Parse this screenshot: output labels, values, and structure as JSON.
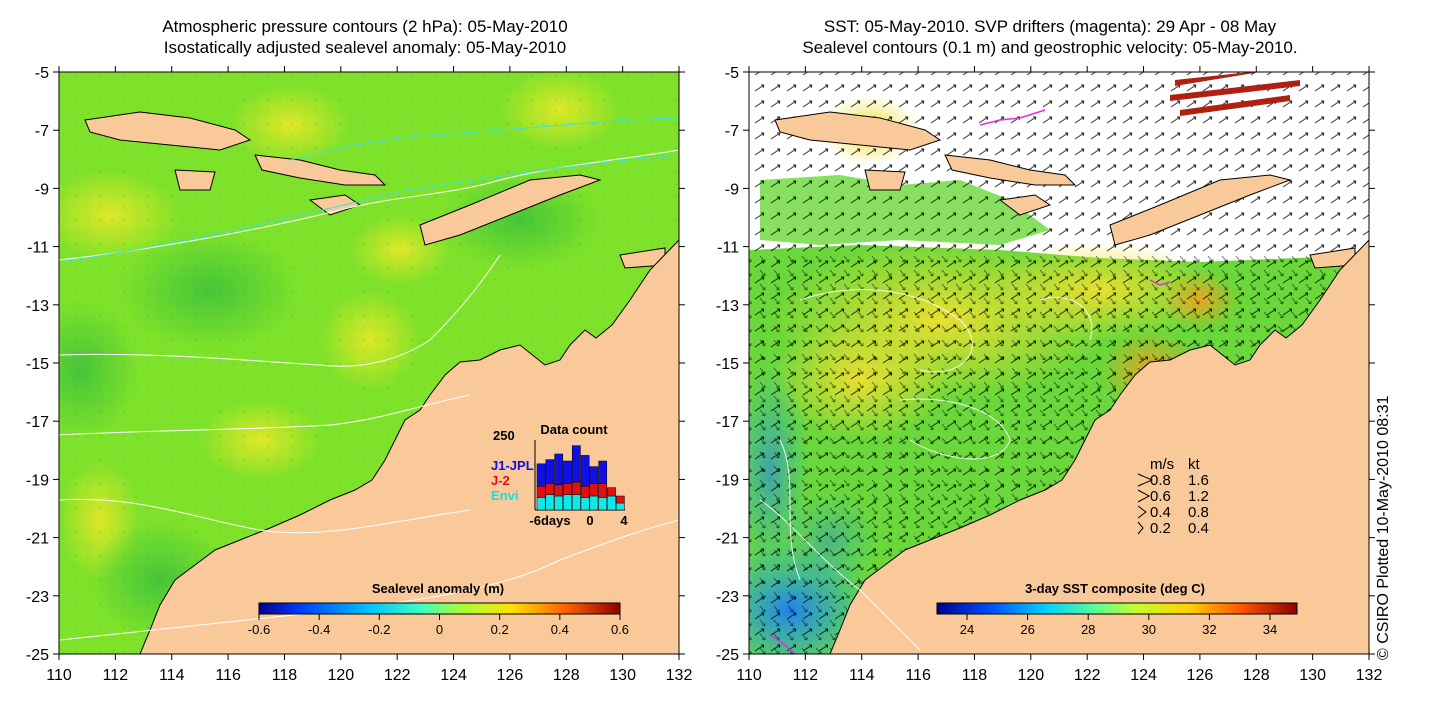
{
  "left_panel": {
    "title_line1": "Atmospheric pressure contours (2 hPa): 05-May-2010",
    "title_line2": "Isostatically adjusted sealevel anomaly: 05-May-2010",
    "x_ticks": [
      "110",
      "112",
      "114",
      "116",
      "118",
      "120",
      "122",
      "124",
      "126",
      "128",
      "130",
      "132"
    ],
    "y_ticks": [
      "-5",
      "-7",
      "-9",
      "-11",
      "-13",
      "-15",
      "-17",
      "-19",
      "-21",
      "-23",
      "-25"
    ],
    "colorbar": {
      "title": "Sealevel anomaly (m)",
      "ticks": [
        "-0.6",
        "-0.4",
        "-0.2",
        "0",
        "0.2",
        "0.4",
        "0.6"
      ]
    },
    "inset": {
      "title": "Data count",
      "y_label": "250",
      "legend": [
        {
          "label": "J1-JPL",
          "color": "#1010e0"
        },
        {
          "label": "J-2",
          "color": "#e01010"
        },
        {
          "label": "Envi",
          "color": "#10e0e0"
        }
      ],
      "x_ticks": [
        "-6days",
        "0",
        "4"
      ],
      "bars": [
        {
          "envi": 45,
          "j2": 40,
          "j1": 80
        },
        {
          "envi": 55,
          "j2": 40,
          "j1": 85
        },
        {
          "envi": 50,
          "j2": 40,
          "j1": 110
        },
        {
          "envi": 55,
          "j2": 40,
          "j1": 80
        },
        {
          "envi": 55,
          "j2": 45,
          "j1": 130
        },
        {
          "envi": 45,
          "j2": 40,
          "j1": 110
        },
        {
          "envi": 50,
          "j2": 45,
          "j1": 60
        },
        {
          "envi": 45,
          "j2": 50,
          "j1": 80
        },
        {
          "envi": 50,
          "j2": 30,
          "j1": 0
        },
        {
          "envi": 25,
          "j2": 25,
          "j1": 0
        }
      ]
    }
  },
  "right_panel": {
    "title_line1": "SST: 05-May-2010. SVP drifters (magenta): 29 Apr - 08 May",
    "title_line2": "Sealevel contours (0.1 m) and geostrophic velocity: 05-May-2010.",
    "x_ticks": [
      "110",
      "112",
      "114",
      "116",
      "118",
      "120",
      "122",
      "124",
      "126",
      "128",
      "130",
      "132"
    ],
    "y_ticks": [
      "-5",
      "-7",
      "-9",
      "-11",
      "-13",
      "-15",
      "-17",
      "-19",
      "-21",
      "-23",
      "-25"
    ],
    "colorbar": {
      "title": "3-day SST composite (deg C)",
      "ticks": [
        "24",
        "26",
        "28",
        "30",
        "32",
        "34"
      ]
    },
    "velocity_legend": {
      "header_ms": "m/s",
      "header_kt": "kt",
      "rows": [
        {
          "ms": "0.8",
          "kt": "1.6"
        },
        {
          "ms": "0.6",
          "kt": "1.2"
        },
        {
          "ms": "0.4",
          "kt": "0.8"
        },
        {
          "ms": "0.2",
          "kt": "0.4"
        }
      ]
    }
  },
  "credit": "© CSIRO Plotted 10-May-2010 08:31",
  "colors": {
    "land": "#f9c99a",
    "ocean_green": "#7fe22a",
    "ocean_light": "#a8e81e",
    "ocean_yellow": "#d8e820",
    "sst_green": "#6ad83a",
    "sst_yellow": "#e8e030",
    "sst_blue": "#1a7ae0",
    "no_data": "#ffffff",
    "magenta": "#e030e0",
    "contour": "#ffffff"
  }
}
